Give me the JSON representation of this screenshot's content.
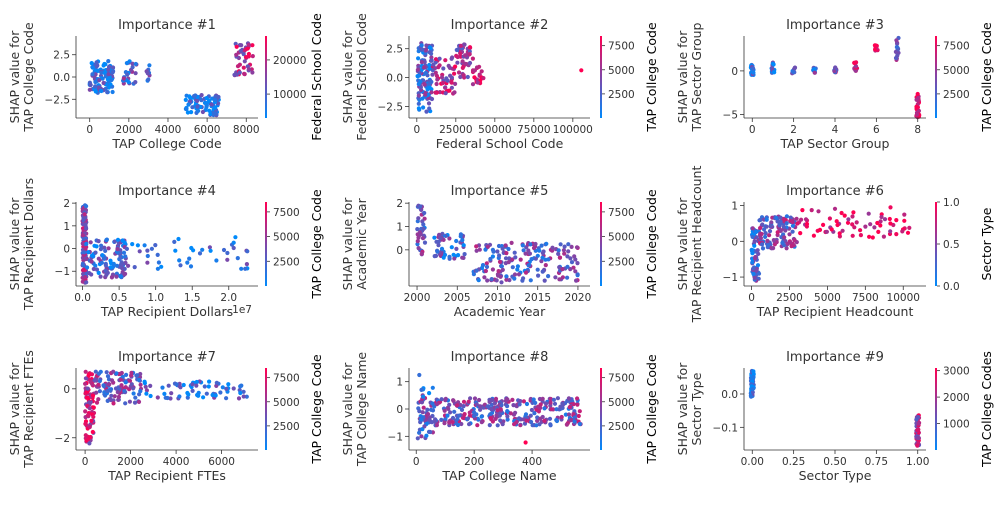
{
  "colors": {
    "low": "#008afb",
    "high": "#ff0052"
  },
  "chart_data": [
    {
      "type": "scatter",
      "title": "Importance #1",
      "xlabel": "TAP College Code",
      "ylabel": [
        "SHAP value for",
        "TAP College Code"
      ],
      "colorbar_label": "Federal School Code",
      "xlim": [
        -700,
        8600
      ],
      "ylim": [
        -4.6,
        4.6
      ],
      "xticks": [
        0,
        2000,
        4000,
        6000,
        8000
      ],
      "xtick_labels": [
        "0",
        "2000",
        "4000",
        "6000",
        "8000"
      ],
      "yticks": [
        -2.5,
        0,
        2.5
      ],
      "ytick_labels": [
        "−2.5",
        "0.0",
        "2.5"
      ],
      "cbar": {
        "min": 3000,
        "max": 27000,
        "ticks": [
          10000,
          20000
        ],
        "tick_labels": [
          "10000",
          "20000"
        ]
      },
      "clusters": [
        {
          "x": [
            0,
            1200
          ],
          "y": [
            -1.8,
            1.8
          ],
          "n": 110,
          "c": 0.15
        },
        {
          "x": [
            1700,
            2400
          ],
          "y": [
            -0.8,
            2.0
          ],
          "n": 25,
          "c": 0.35
        },
        {
          "x": [
            2900,
            3100
          ],
          "y": [
            -0.6,
            1.6
          ],
          "n": 8,
          "c": 0.2
        },
        {
          "x": [
            4900,
            6600
          ],
          "y": [
            -4.3,
            -2.0
          ],
          "n": 80,
          "c": 0.1
        },
        {
          "x": [
            7400,
            8400
          ],
          "y": [
            0.2,
            4.2
          ],
          "n": 45,
          "c": 0.7
        }
      ]
    },
    {
      "type": "scatter",
      "title": "Importance #2",
      "xlabel": "Federal School Code",
      "ylabel": [
        "SHAP value for",
        "Federal School Code"
      ],
      "colorbar_label": "TAP College Code",
      "xlim": [
        -5000,
        111000
      ],
      "ylim": [
        -3.5,
        3.6
      ],
      "xticks": [
        0,
        25000,
        50000,
        75000,
        100000
      ],
      "xtick_labels": [
        "0",
        "25000",
        "50000",
        "75000",
        "100000"
      ],
      "yticks": [
        -2.5,
        0,
        2.5
      ],
      "ytick_labels": [
        "−2.5",
        "0.0",
        "2.5"
      ],
      "cbar": {
        "min": 0,
        "max": 8500,
        "ticks": [
          2500,
          5000,
          7500
        ],
        "tick_labels": [
          "2500",
          "5000",
          "7500"
        ]
      },
      "clusters": [
        {
          "x": [
            500,
            10000
          ],
          "y": [
            -3.0,
            3.0
          ],
          "n": 120,
          "c": 0.3
        },
        {
          "x": [
            10000,
            25000
          ],
          "y": [
            -1.4,
            1.8
          ],
          "n": 55,
          "c": 0.65
        },
        {
          "x": [
            25000,
            36000
          ],
          "y": [
            0.0,
            2.9
          ],
          "n": 45,
          "c": 0.6
        },
        {
          "x": [
            36000,
            43000
          ],
          "y": [
            -0.6,
            1.0
          ],
          "n": 18,
          "c": 0.85
        },
        {
          "x": [
            105000,
            107000
          ],
          "y": [
            0.5,
            0.8
          ],
          "n": 1,
          "c": 0.9
        }
      ]
    },
    {
      "type": "scatter",
      "title": "Importance #3",
      "xlabel": "TAP Sector Group",
      "ylabel": [
        "SHAP value for",
        "TAP Sector Group"
      ],
      "colorbar_label": "TAP College Code",
      "xlim": [
        -0.4,
        8.4
      ],
      "ylim": [
        -5.4,
        4.0
      ],
      "xticks": [
        0,
        2,
        4,
        6,
        8
      ],
      "xtick_labels": [
        "0",
        "2",
        "4",
        "6",
        "8"
      ],
      "yticks": [
        -5,
        0
      ],
      "ytick_labels": [
        "−5",
        "0"
      ],
      "cbar": {
        "min": 0,
        "max": 8500,
        "ticks": [
          2500,
          5000,
          7500
        ],
        "tick_labels": [
          "2500",
          "5000",
          "7500"
        ]
      },
      "clusters": [
        {
          "x": [
            0,
            0
          ],
          "y": [
            -0.6,
            0.7
          ],
          "n": 22,
          "c": 0.1
        },
        {
          "x": [
            1,
            1
          ],
          "y": [
            -0.3,
            1.0
          ],
          "n": 14,
          "c": 0.15
        },
        {
          "x": [
            2,
            2
          ],
          "y": [
            -0.3,
            0.4
          ],
          "n": 8,
          "c": 0.2
        },
        {
          "x": [
            3,
            3
          ],
          "y": [
            -0.3,
            0.4
          ],
          "n": 8,
          "c": 0.35
        },
        {
          "x": [
            4,
            4
          ],
          "y": [
            -0.2,
            0.5
          ],
          "n": 10,
          "c": 0.45
        },
        {
          "x": [
            5,
            5
          ],
          "y": [
            0.0,
            1.0
          ],
          "n": 12,
          "c": 0.75
        },
        {
          "x": [
            6,
            6
          ],
          "y": [
            2.2,
            3.0
          ],
          "n": 12,
          "c": 0.9
        },
        {
          "x": [
            7,
            7
          ],
          "y": [
            1.2,
            3.8
          ],
          "n": 14,
          "c": 0.45
        },
        {
          "x": [
            8,
            8
          ],
          "y": [
            -5.3,
            -2.6
          ],
          "n": 30,
          "c": 0.95
        }
      ]
    },
    {
      "type": "scatter",
      "title": "Importance #4",
      "xlabel": "TAP Recipient Dollars",
      "x_offset_label": "1e7",
      "ylabel": [
        "SHAP value for",
        "TAP Recipient Dollars"
      ],
      "colorbar_label": "TAP College Code",
      "xlim": [
        -900000,
        24000000
      ],
      "ylim": [
        -1.65,
        2.05
      ],
      "xticks": [
        0,
        5000000,
        10000000,
        15000000,
        20000000
      ],
      "xtick_labels": [
        "0.0",
        "0.5",
        "1.0",
        "1.5",
        "2.0"
      ],
      "yticks": [
        -1,
        0,
        1,
        2
      ],
      "ytick_labels": [
        "−1",
        "0",
        "1",
        "2"
      ],
      "cbar": {
        "min": 0,
        "max": 8500,
        "ticks": [
          2500,
          5000,
          7500
        ],
        "tick_labels": [
          "2500",
          "5000",
          "7500"
        ]
      },
      "clusters": [
        {
          "x": [
            0,
            500000
          ],
          "y": [
            -1.5,
            1.9
          ],
          "n": 120,
          "c": 0.5
        },
        {
          "x": [
            500000,
            6000000
          ],
          "y": [
            -1.3,
            0.4
          ],
          "n": 110,
          "c": 0.25
        },
        {
          "x": [
            6000000,
            23000000
          ],
          "y": [
            -0.9,
            0.5
          ],
          "n": 45,
          "c": 0.15
        }
      ]
    },
    {
      "type": "scatter",
      "title": "Importance #5",
      "xlabel": "Academic Year",
      "ylabel": [
        "SHAP value for",
        "Academic Year"
      ],
      "colorbar_label": "TAP College Code",
      "xlim": [
        1999,
        2021.5
      ],
      "ylim": [
        -1.55,
        2.05
      ],
      "xticks": [
        2000,
        2005,
        2010,
        2015,
        2020
      ],
      "xtick_labels": [
        "2000",
        "2005",
        "2010",
        "2015",
        "2020"
      ],
      "yticks": [
        0,
        1,
        2
      ],
      "ytick_labels": [
        "0",
        "1",
        "2"
      ],
      "cbar": {
        "min": 0,
        "max": 8500,
        "ticks": [
          2500,
          5000,
          7500
        ],
        "tick_labels": [
          "2500",
          "5000",
          "7500"
        ]
      },
      "clusters": [
        {
          "x": [
            2000,
            2001
          ],
          "y": [
            -0.2,
            1.9
          ],
          "n": 40,
          "c": 0.4
        },
        {
          "x": [
            2002,
            2006
          ],
          "y": [
            -0.4,
            0.7
          ],
          "n": 50,
          "c": 0.3
        },
        {
          "x": [
            2007,
            2020
          ],
          "y": [
            -1.4,
            0.3
          ],
          "n": 180,
          "c": 0.4
        }
      ]
    },
    {
      "type": "scatter",
      "title": "Importance #6",
      "xlabel": "TAP Recipient Headcount",
      "ylabel": [
        "SHAP value for",
        "TAP Recipient Headcount"
      ],
      "colorbar_label": "Sector Type",
      "xlim": [
        -500,
        11500
      ],
      "ylim": [
        -1.25,
        1.1
      ],
      "xticks": [
        0,
        2500,
        5000,
        7500,
        10000
      ],
      "xtick_labels": [
        "0",
        "2500",
        "5000",
        "7500",
        "10000"
      ],
      "yticks": [
        -1,
        0,
        1
      ],
      "ytick_labels": [
        "−1",
        "0",
        "1"
      ],
      "cbar": {
        "min": 0,
        "max": 1,
        "ticks": [
          0,
          0.5,
          1.0
        ],
        "tick_labels": [
          "0.0",
          "0.5",
          "1.0"
        ]
      },
      "clusters": [
        {
          "x": [
            0,
            500
          ],
          "y": [
            -1.1,
            0.4
          ],
          "n": 60,
          "c": 0.3
        },
        {
          "x": [
            500,
            3000
          ],
          "y": [
            -0.2,
            0.7
          ],
          "n": 120,
          "c": 0.45
        },
        {
          "x": [
            3000,
            10500
          ],
          "y": [
            0.1,
            0.95
          ],
          "n": 70,
          "c": 0.92
        }
      ]
    },
    {
      "type": "scatter",
      "title": "Importance #7",
      "xlabel": "TAP Recipient FTEs",
      "ylabel": [
        "SHAP value for",
        "TAP Recipient FTEs"
      ],
      "colorbar_label": "TAP College Code",
      "xlim": [
        -400,
        7600
      ],
      "ylim": [
        -2.5,
        0.85
      ],
      "xticks": [
        0,
        2000,
        4000,
        6000
      ],
      "xtick_labels": [
        "0",
        "2000",
        "4000",
        "6000"
      ],
      "yticks": [
        -2,
        0
      ],
      "ytick_labels": [
        "−2",
        "0"
      ],
      "cbar": {
        "min": 0,
        "max": 8500,
        "ticks": [
          2500,
          5000,
          7500
        ],
        "tick_labels": [
          "2500",
          "5000",
          "7500"
        ]
      },
      "clusters": [
        {
          "x": [
            0,
            400
          ],
          "y": [
            -2.3,
            0.7
          ],
          "n": 80,
          "c": 0.75
        },
        {
          "x": [
            400,
            2500
          ],
          "y": [
            -0.6,
            0.7
          ],
          "n": 110,
          "c": 0.45
        },
        {
          "x": [
            2500,
            7300
          ],
          "y": [
            -0.4,
            0.3
          ],
          "n": 70,
          "c": 0.2
        }
      ]
    },
    {
      "type": "scatter",
      "title": "Importance #8",
      "xlabel": "TAP College Name",
      "ylabel": [
        "SHAP value for",
        "TAP College Name"
      ],
      "colorbar_label": "TAP College Code",
      "xlim": [
        -25,
        600
      ],
      "ylim": [
        -1.5,
        1.5
      ],
      "xticks": [
        0,
        200,
        400
      ],
      "xtick_labels": [
        "0",
        "200",
        "400"
      ],
      "yticks": [
        -1,
        0,
        1
      ],
      "ytick_labels": [
        "−1",
        "0",
        "1"
      ],
      "cbar": {
        "min": 0,
        "max": 8500,
        "ticks": [
          2500,
          5000,
          7500
        ],
        "tick_labels": [
          "2500",
          "5000",
          "7500"
        ]
      },
      "clusters": [
        {
          "x": [
            5,
            570
          ],
          "y": [
            -0.6,
            0.4
          ],
          "n": 340,
          "c": 0.45
        },
        {
          "x": [
            5,
            60
          ],
          "y": [
            -1.1,
            0.8
          ],
          "n": 25,
          "c": 0.3
        },
        {
          "x": [
            10,
            15
          ],
          "y": [
            1.2,
            1.3
          ],
          "n": 1,
          "c": 0.3
        },
        {
          "x": [
            375,
            385
          ],
          "y": [
            -1.25,
            -1.15
          ],
          "n": 1,
          "c": 0.9
        }
      ]
    },
    {
      "type": "scatter",
      "title": "Importance #9",
      "xlabel": "Sector Type",
      "ylabel": [
        "SHAP value for",
        "Sector Type"
      ],
      "colorbar_label": "TAP College Codes",
      "xlim": [
        -0.05,
        1.05
      ],
      "ylim": [
        -0.168,
        0.078
      ],
      "xticks": [
        0,
        0.25,
        0.5,
        0.75,
        1.0
      ],
      "xtick_labels": [
        "0.00",
        "0.25",
        "0.50",
        "0.75",
        "1.00"
      ],
      "yticks": [
        -0.1,
        0
      ],
      "ytick_labels": [
        "−0.1",
        "0.0"
      ],
      "cbar": {
        "min": 0,
        "max": 3100,
        "ticks": [
          1000,
          2000,
          3000
        ],
        "tick_labels": [
          "1000",
          "2000",
          "3000"
        ]
      },
      "clusters": [
        {
          "x": [
            0,
            0
          ],
          "y": [
            -0.008,
            0.07
          ],
          "n": 60,
          "c": 0.1
        },
        {
          "x": [
            1,
            1
          ],
          "y": [
            -0.155,
            -0.06
          ],
          "n": 50,
          "c": 0.65
        }
      ]
    }
  ]
}
